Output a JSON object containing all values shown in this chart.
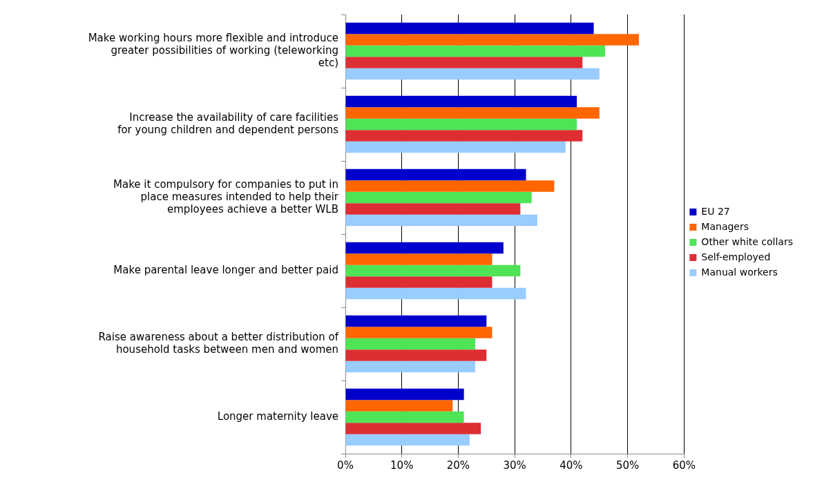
{
  "chart_data": {
    "type": "bar",
    "orientation": "horizontal",
    "categories": [
      "Make working hours more flexible and introduce greater possibilities of working (teleworking etc)",
      "Increase the availability of care facilities for young children and dependent persons",
      "Make it compulsory for companies to put in place measures intended to help their employees achieve a better WLB",
      "Make parental leave longer and better paid",
      "Raise awareness about a better distribution of household tasks between men and women",
      "Longer maternity leave"
    ],
    "series": [
      {
        "name": "EU 27",
        "color": "#0000cc",
        "values": [
          44,
          41,
          32,
          28,
          25,
          21
        ]
      },
      {
        "name": "Managers",
        "color": "#ff6600",
        "values": [
          52,
          45,
          37,
          26,
          26,
          19
        ]
      },
      {
        "name": "Other white collars",
        "color": "#4ee456",
        "values": [
          46,
          41,
          33,
          31,
          23,
          21
        ]
      },
      {
        "name": "Self-employed",
        "color": "#dd2e34",
        "values": [
          42,
          42,
          31,
          26,
          25,
          24
        ]
      },
      {
        "name": "Manual workers",
        "color": "#99ccff",
        "values": [
          45,
          39,
          34,
          32,
          23,
          22
        ]
      }
    ],
    "xlim": [
      0,
      60
    ],
    "xticks": [
      {
        "value": 0,
        "label": "0%"
      },
      {
        "value": 10,
        "label": "10%"
      },
      {
        "value": 20,
        "label": "20%"
      },
      {
        "value": 30,
        "label": "30%"
      },
      {
        "value": 40,
        "label": "40%"
      },
      {
        "value": 50,
        "label": "50%"
      },
      {
        "value": 60,
        "label": "60%"
      }
    ],
    "grid": "x",
    "legend": "right"
  }
}
